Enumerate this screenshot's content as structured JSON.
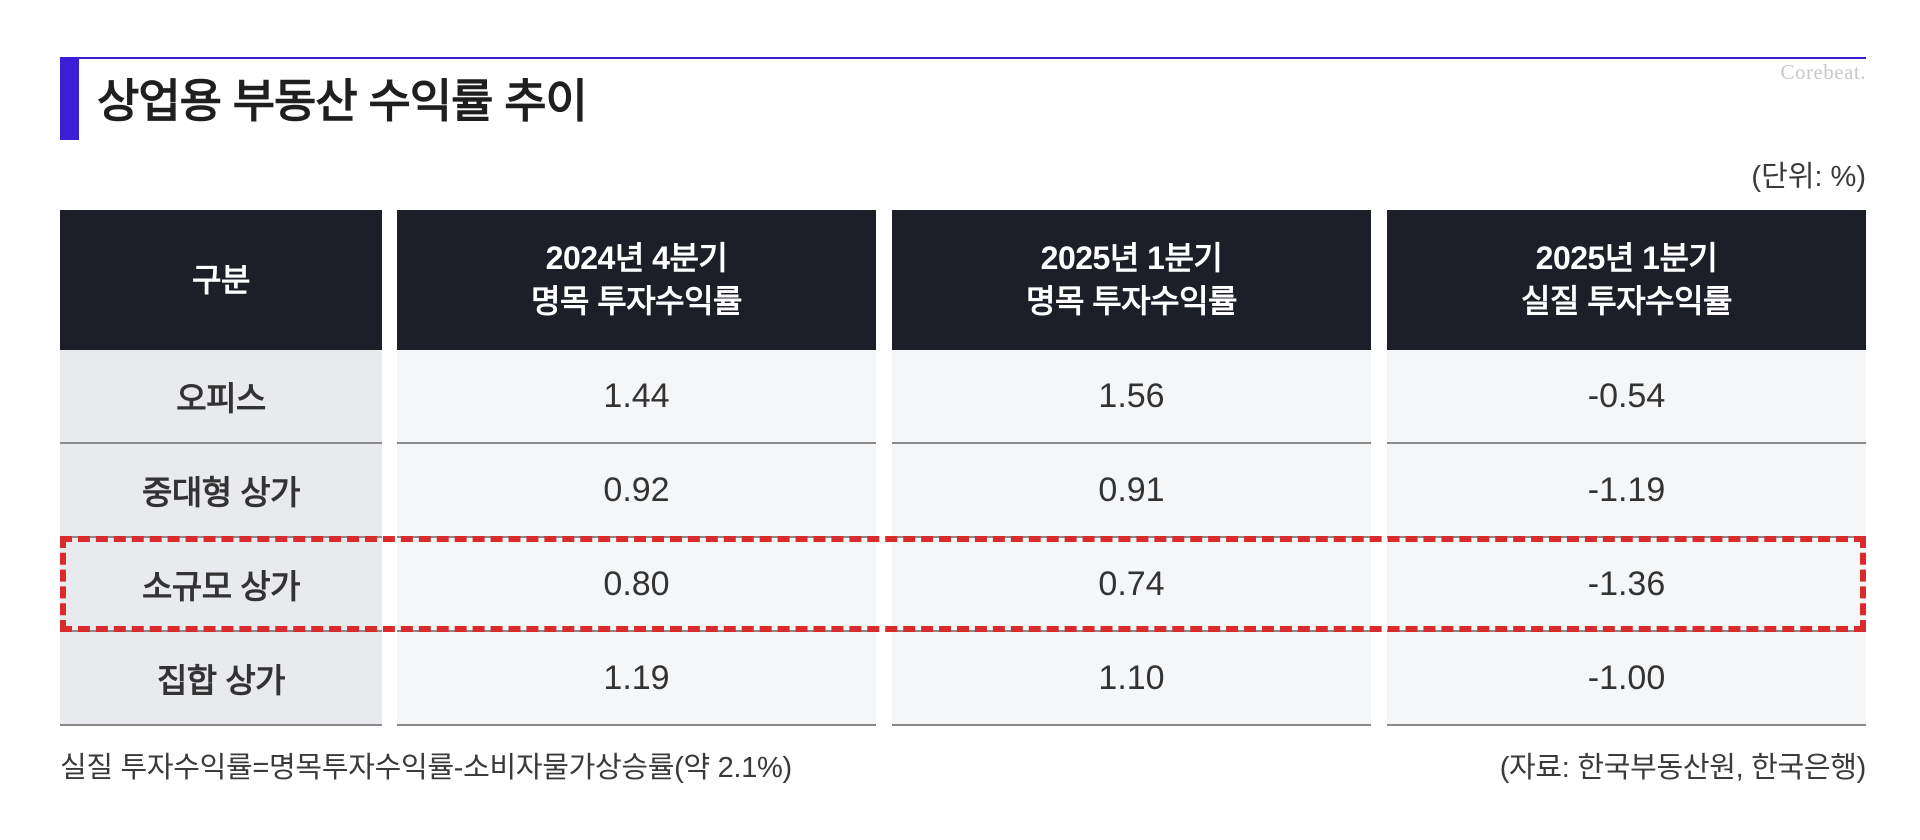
{
  "title": "상업용 부동산 수익률 추이",
  "logo": "Corebeat.",
  "unit_label": "(단위: %)",
  "note": "실질 투자수익률=명목투자수익률-소비자물가상승률(약 2.1%)",
  "source": "(자료: 한국부동산원, 한국은행)",
  "colors": {
    "accent": "#3a1fd6",
    "header_bg": "#1c1e28",
    "highlight": "#d92b2b"
  },
  "chart_data": {
    "type": "table",
    "title": "상업용 부동산 수익률 추이",
    "unit": "(단위: %)",
    "columns": [
      {
        "line1": "구분",
        "line2": ""
      },
      {
        "line1": "2024년 4분기",
        "line2": "명목 투자수익률"
      },
      {
        "line1": "2025년 1분기",
        "line2": "명목 투자수익률"
      },
      {
        "line1": "2025년 1분기",
        "line2": "실질 투자수익률"
      }
    ],
    "rows": [
      {
        "category": "오피스",
        "values": [
          "1.44",
          "1.56",
          "-0.54"
        ]
      },
      {
        "category": "중대형 상가",
        "values": [
          "0.92",
          "0.91",
          "-1.19"
        ]
      },
      {
        "category": "소규모 상가",
        "values": [
          "0.80",
          "0.74",
          "-1.36"
        ]
      },
      {
        "category": "집합 상가",
        "values": [
          "1.19",
          "1.10",
          "-1.00"
        ]
      }
    ],
    "highlighted_row": "소규모 상가"
  }
}
